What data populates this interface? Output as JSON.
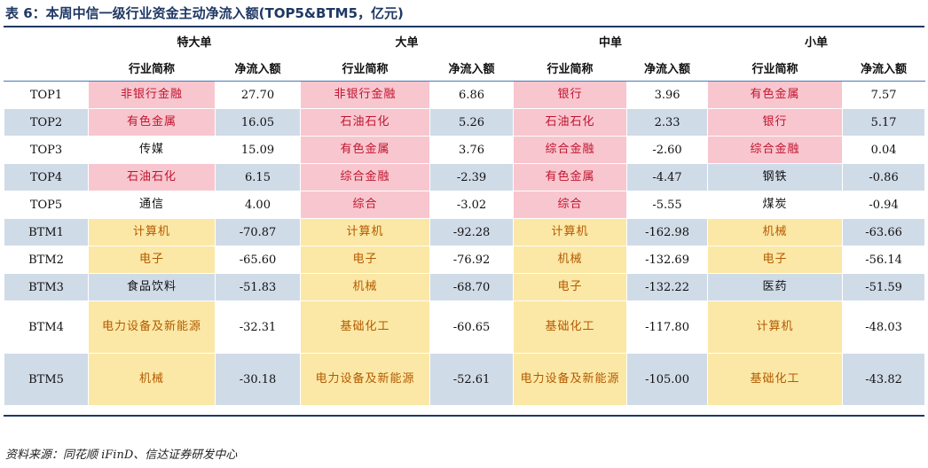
{
  "title": "表 6：本周中信一级行业资金主动净流入额(TOP5&BTM5，亿元)",
  "groups": [
    "特大单",
    "大单",
    "中单",
    "小单"
  ],
  "sub_headers": {
    "industry": "行业简称",
    "flow": "净流入额"
  },
  "rows": [
    {
      "rank": "TOP1",
      "cells": [
        {
          "ind": "非银行金融",
          "val": "27.70",
          "hl": "pink"
        },
        {
          "ind": "非银行金融",
          "val": "6.86",
          "hl": "pink"
        },
        {
          "ind": "银行",
          "val": "3.96",
          "hl": "pink"
        },
        {
          "ind": "有色金属",
          "val": "7.57",
          "hl": "pink"
        }
      ]
    },
    {
      "rank": "TOP2",
      "cells": [
        {
          "ind": "有色金属",
          "val": "16.05",
          "hl": "pink"
        },
        {
          "ind": "石油石化",
          "val": "5.26",
          "hl": "pink"
        },
        {
          "ind": "石油石化",
          "val": "2.33",
          "hl": "pink"
        },
        {
          "ind": "银行",
          "val": "5.17",
          "hl": "pink"
        }
      ]
    },
    {
      "rank": "TOP3",
      "cells": [
        {
          "ind": "传媒",
          "val": "15.09",
          "hl": ""
        },
        {
          "ind": "有色金属",
          "val": "3.76",
          "hl": "pink"
        },
        {
          "ind": "综合金融",
          "val": "-2.60",
          "hl": "pink"
        },
        {
          "ind": "综合金融",
          "val": "0.04",
          "hl": "pink"
        }
      ]
    },
    {
      "rank": "TOP4",
      "cells": [
        {
          "ind": "石油石化",
          "val": "6.15",
          "hl": "pink"
        },
        {
          "ind": "综合金融",
          "val": "-2.39",
          "hl": "pink"
        },
        {
          "ind": "有色金属",
          "val": "-4.47",
          "hl": "pink"
        },
        {
          "ind": "钢铁",
          "val": "-0.86",
          "hl": ""
        }
      ]
    },
    {
      "rank": "TOP5",
      "cells": [
        {
          "ind": "通信",
          "val": "4.00",
          "hl": ""
        },
        {
          "ind": "综合",
          "val": "-3.02",
          "hl": "pink"
        },
        {
          "ind": "综合",
          "val": "-5.55",
          "hl": "pink"
        },
        {
          "ind": "煤炭",
          "val": "-0.94",
          "hl": ""
        }
      ]
    },
    {
      "rank": "BTM1",
      "cells": [
        {
          "ind": "计算机",
          "val": "-70.87",
          "hl": "yellow"
        },
        {
          "ind": "计算机",
          "val": "-92.28",
          "hl": "yellow"
        },
        {
          "ind": "计算机",
          "val": "-162.98",
          "hl": "yellow"
        },
        {
          "ind": "机械",
          "val": "-63.66",
          "hl": "yellow"
        }
      ]
    },
    {
      "rank": "BTM2",
      "cells": [
        {
          "ind": "电子",
          "val": "-65.60",
          "hl": "yellow"
        },
        {
          "ind": "电子",
          "val": "-76.92",
          "hl": "yellow"
        },
        {
          "ind": "机械",
          "val": "-132.69",
          "hl": "yellow"
        },
        {
          "ind": "电子",
          "val": "-56.14",
          "hl": "yellow"
        }
      ]
    },
    {
      "rank": "BTM3",
      "cells": [
        {
          "ind": "食品饮料",
          "val": "-51.83",
          "hl": ""
        },
        {
          "ind": "机械",
          "val": "-68.70",
          "hl": "yellow"
        },
        {
          "ind": "电子",
          "val": "-132.22",
          "hl": "yellow"
        },
        {
          "ind": "医药",
          "val": "-51.59",
          "hl": ""
        }
      ]
    },
    {
      "rank": "BTM4",
      "cells": [
        {
          "ind": "电力设备及新能源",
          "val": "-32.31",
          "hl": "yellow"
        },
        {
          "ind": "基础化工",
          "val": "-60.65",
          "hl": "yellow"
        },
        {
          "ind": "基础化工",
          "val": "-117.80",
          "hl": "yellow"
        },
        {
          "ind": "计算机",
          "val": "-48.03",
          "hl": "yellow"
        }
      ]
    },
    {
      "rank": "BTM5",
      "cells": [
        {
          "ind": "机械",
          "val": "-30.18",
          "hl": "yellow"
        },
        {
          "ind": "电力设备及新能源",
          "val": "-52.61",
          "hl": "yellow"
        },
        {
          "ind": "电力设备及新能源",
          "val": "-105.00",
          "hl": "yellow"
        },
        {
          "ind": "基础化工",
          "val": "-43.82",
          "hl": "yellow"
        }
      ]
    }
  ],
  "source": "资料来源：同花顺 iFinD、信达证券研发中心",
  "colors": {
    "pink_bg": "#f8c6cf",
    "pink_text": "#c0152f",
    "yellow_bg": "#fbe8a6",
    "yellow_text": "#b35a00",
    "blue_row": "#d0dbe8"
  }
}
